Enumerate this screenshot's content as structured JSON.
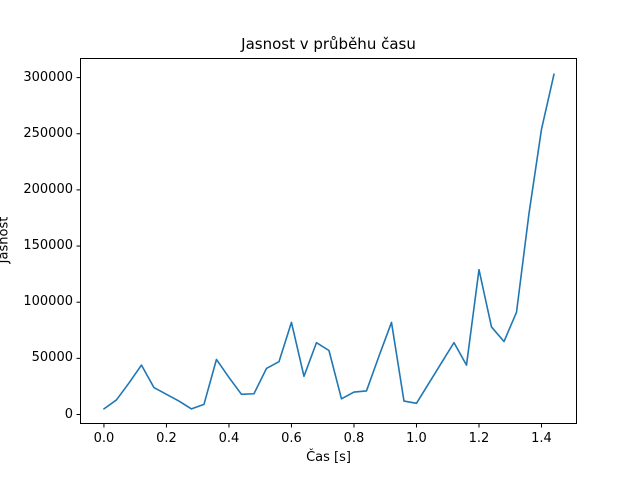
{
  "chart_data": {
    "type": "line",
    "title": "Jasnost v průběhu času",
    "xlabel": "Čas [s]",
    "ylabel": "Jasnost",
    "line_color": "#1f77b4",
    "background_color": "#ffffff",
    "grid": false,
    "legend": "none",
    "xlim": [
      -0.075,
      1.512
    ],
    "ylim": [
      -8000,
      317000
    ],
    "xticks": {
      "values": [
        0.0,
        0.2,
        0.4,
        0.6,
        0.8,
        1.0,
        1.2,
        1.4
      ],
      "labels": [
        "0.0",
        "0.2",
        "0.4",
        "0.6",
        "0.8",
        "1.0",
        "1.2",
        "1.4"
      ]
    },
    "yticks": {
      "values": [
        0,
        50000,
        100000,
        150000,
        200000,
        250000,
        300000
      ],
      "labels": [
        "0",
        "50000",
        "100000",
        "150000",
        "200000",
        "250000",
        "300000"
      ]
    },
    "x": [
      0.0,
      0.04,
      0.08,
      0.12,
      0.16,
      0.2,
      0.24,
      0.28,
      0.32,
      0.36,
      0.4,
      0.44,
      0.48,
      0.52,
      0.56,
      0.6,
      0.64,
      0.68,
      0.72,
      0.76,
      0.8,
      0.84,
      0.88,
      0.92,
      0.96,
      1.0,
      1.04,
      1.08,
      1.12,
      1.16,
      1.2,
      1.24,
      1.28,
      1.32,
      1.36,
      1.4,
      1.44
    ],
    "y": [
      5000,
      13000,
      28000,
      44000,
      24000,
      18000,
      12000,
      5000,
      9000,
      49000,
      33000,
      18000,
      18500,
      41000,
      47000,
      82000,
      34000,
      64000,
      57000,
      14000,
      20000,
      21000,
      52000,
      82000,
      12000,
      10000,
      28000,
      46000,
      64000,
      44000,
      129000,
      78000,
      65000,
      91000,
      179000,
      254000,
      303000
    ]
  }
}
